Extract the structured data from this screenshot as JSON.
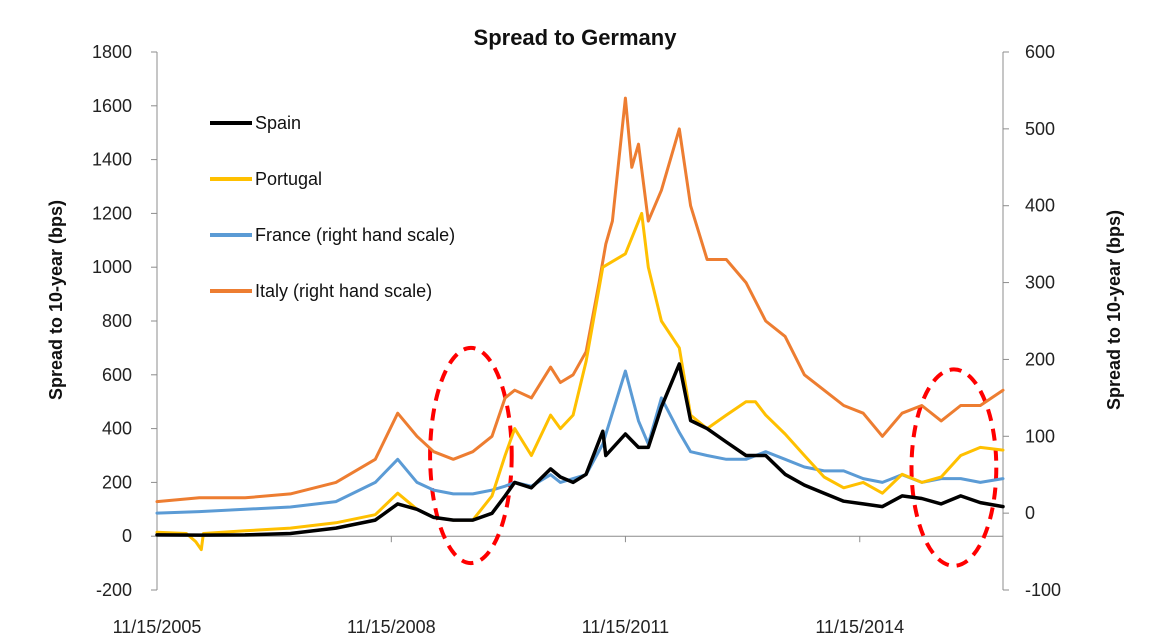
{
  "chart_data": {
    "type": "line",
    "title": "Spread to Germany",
    "ylabel": "Spread to 10-year (bps)",
    "y2label": "Spread to 10-year (bps)",
    "ylim": [
      -200,
      1800
    ],
    "y2lim": [
      -100,
      600
    ],
    "yticks": [
      -200,
      0,
      200,
      400,
      600,
      800,
      1000,
      1200,
      1400,
      1600,
      1800
    ],
    "y2ticks": [
      -100,
      0,
      100,
      200,
      300,
      400,
      500,
      600
    ],
    "xlim": [
      "2005-11-15",
      "2016-09-15"
    ],
    "xticks": [
      "11/15/2005",
      "11/15/2008",
      "11/15/2011",
      "11/15/2014"
    ],
    "grid": false,
    "legend_position": "top-left",
    "series": [
      {
        "name": "Spain",
        "axis": "left",
        "color": "#000000",
        "x": [
          "2005-11-15",
          "2006-06-01",
          "2007-01-01",
          "2007-08-01",
          "2008-03-01",
          "2008-09-01",
          "2008-12-15",
          "2009-03-15",
          "2009-06-01",
          "2009-09-01",
          "2009-12-01",
          "2010-03-01",
          "2010-05-01",
          "2010-06-15",
          "2010-09-01",
          "2010-11-30",
          "2011-01-15",
          "2011-03-15",
          "2011-05-15",
          "2011-08-01",
          "2011-08-15",
          "2011-11-15",
          "2012-01-15",
          "2012-03-01",
          "2012-05-01",
          "2012-07-24",
          "2012-09-15",
          "2012-12-01",
          "2013-03-01",
          "2013-06-01",
          "2013-09-01",
          "2013-12-01",
          "2014-03-01",
          "2014-06-01",
          "2014-09-01",
          "2014-12-01",
          "2015-03-01",
          "2015-06-01",
          "2015-09-01",
          "2015-12-01",
          "2016-03-01",
          "2016-06-01",
          "2016-09-15"
        ],
        "values": [
          5,
          4,
          5,
          10,
          30,
          60,
          120,
          100,
          70,
          60,
          60,
          85,
          150,
          200,
          180,
          250,
          220,
          200,
          230,
          390,
          300,
          380,
          330,
          330,
          480,
          640,
          430,
          400,
          350,
          300,
          300,
          230,
          190,
          160,
          130,
          120,
          110,
          150,
          140,
          120,
          150,
          125,
          110
        ]
      },
      {
        "name": "Portugal",
        "axis": "left",
        "color": "#FFC000",
        "x": [
          "2005-11-15",
          "2006-04-01",
          "2006-05-15",
          "2006-06-10",
          "2006-06-20",
          "2007-01-01",
          "2007-08-01",
          "2008-03-01",
          "2008-09-01",
          "2008-12-15",
          "2009-03-15",
          "2009-06-01",
          "2009-09-01",
          "2009-12-01",
          "2010-03-01",
          "2010-05-01",
          "2010-06-15",
          "2010-09-01",
          "2010-11-30",
          "2011-01-15",
          "2011-03-15",
          "2011-05-15",
          "2011-08-01",
          "2011-11-15",
          "2012-01-30",
          "2012-03-01",
          "2012-05-01",
          "2012-07-24",
          "2012-09-15",
          "2012-12-01",
          "2013-03-01",
          "2013-06-01",
          "2013-07-15",
          "2013-09-01",
          "2013-12-01",
          "2014-03-01",
          "2014-06-01",
          "2014-09-01",
          "2014-12-01",
          "2015-03-01",
          "2015-06-01",
          "2015-09-01",
          "2015-12-01",
          "2016-03-01",
          "2016-06-01",
          "2016-09-15"
        ],
        "values": [
          15,
          10,
          -20,
          -50,
          10,
          20,
          30,
          50,
          80,
          160,
          100,
          70,
          60,
          60,
          150,
          300,
          400,
          300,
          450,
          400,
          450,
          650,
          1000,
          1050,
          1200,
          1000,
          800,
          700,
          450,
          400,
          450,
          500,
          500,
          450,
          380,
          300,
          220,
          180,
          200,
          160,
          230,
          200,
          220,
          300,
          330,
          320
        ]
      },
      {
        "name": "France (right hand scale)",
        "axis": "right",
        "color": "#5B9BD5",
        "x": [
          "2005-11-15",
          "2006-06-01",
          "2007-01-01",
          "2007-08-01",
          "2008-03-01",
          "2008-09-01",
          "2008-12-15",
          "2009-03-15",
          "2009-06-01",
          "2009-09-01",
          "2009-12-01",
          "2010-03-01",
          "2010-05-01",
          "2010-06-15",
          "2010-09-01",
          "2010-11-30",
          "2011-01-15",
          "2011-03-15",
          "2011-05-15",
          "2011-08-01",
          "2011-11-15",
          "2012-01-15",
          "2012-03-01",
          "2012-05-01",
          "2012-07-24",
          "2012-09-15",
          "2012-12-01",
          "2013-03-01",
          "2013-06-01",
          "2013-09-01",
          "2013-12-01",
          "2014-03-01",
          "2014-06-01",
          "2014-09-01",
          "2014-12-01",
          "2015-03-01",
          "2015-06-01",
          "2015-09-01",
          "2015-12-01",
          "2016-03-01",
          "2016-06-01",
          "2016-09-15"
        ],
        "values": [
          0,
          2,
          5,
          8,
          15,
          40,
          70,
          40,
          30,
          25,
          25,
          30,
          35,
          40,
          35,
          50,
          40,
          45,
          50,
          90,
          185,
          120,
          90,
          150,
          105,
          80,
          75,
          70,
          70,
          80,
          70,
          60,
          55,
          55,
          45,
          40,
          50,
          40,
          45,
          45,
          40,
          45
        ]
      },
      {
        "name": "Italy (right hand scale)",
        "axis": "right",
        "color": "#ED7D31",
        "x": [
          "2005-11-15",
          "2006-06-01",
          "2007-01-01",
          "2007-08-01",
          "2008-03-01",
          "2008-09-01",
          "2008-12-15",
          "2009-03-15",
          "2009-06-01",
          "2009-09-01",
          "2009-12-01",
          "2010-03-01",
          "2010-05-01",
          "2010-06-15",
          "2010-09-01",
          "2010-11-30",
          "2011-01-15",
          "2011-03-15",
          "2011-05-15",
          "2011-07-15",
          "2011-08-15",
          "2011-09-15",
          "2011-11-15",
          "2011-12-15",
          "2012-01-15",
          "2012-03-01",
          "2012-05-01",
          "2012-07-24",
          "2012-09-15",
          "2012-12-01",
          "2013-03-01",
          "2013-06-01",
          "2013-09-01",
          "2013-12-01",
          "2014-03-01",
          "2014-06-01",
          "2014-09-01",
          "2014-12-01",
          "2015-03-01",
          "2015-06-01",
          "2015-09-01",
          "2015-12-01",
          "2016-03-01",
          "2016-06-01",
          "2016-09-15"
        ],
        "values": [
          15,
          20,
          20,
          25,
          40,
          70,
          130,
          100,
          80,
          70,
          80,
          100,
          150,
          160,
          150,
          190,
          170,
          180,
          210,
          300,
          350,
          380,
          540,
          450,
          480,
          380,
          420,
          500,
          400,
          330,
          330,
          300,
          250,
          230,
          180,
          160,
          140,
          130,
          100,
          130,
          140,
          120,
          140,
          140,
          160
        ]
      }
    ],
    "annotations": [
      {
        "shape": "dashed-ellipse",
        "color": "#FF0000",
        "x_range": [
          "2009-05-15",
          "2010-06-01"
        ],
        "y_range": [
          -100,
          700
        ]
      },
      {
        "shape": "dashed-ellipse",
        "color": "#FF0000",
        "x_range": [
          "2015-07-15",
          "2016-08-15"
        ],
        "y_range": [
          -110,
          620
        ]
      }
    ]
  }
}
